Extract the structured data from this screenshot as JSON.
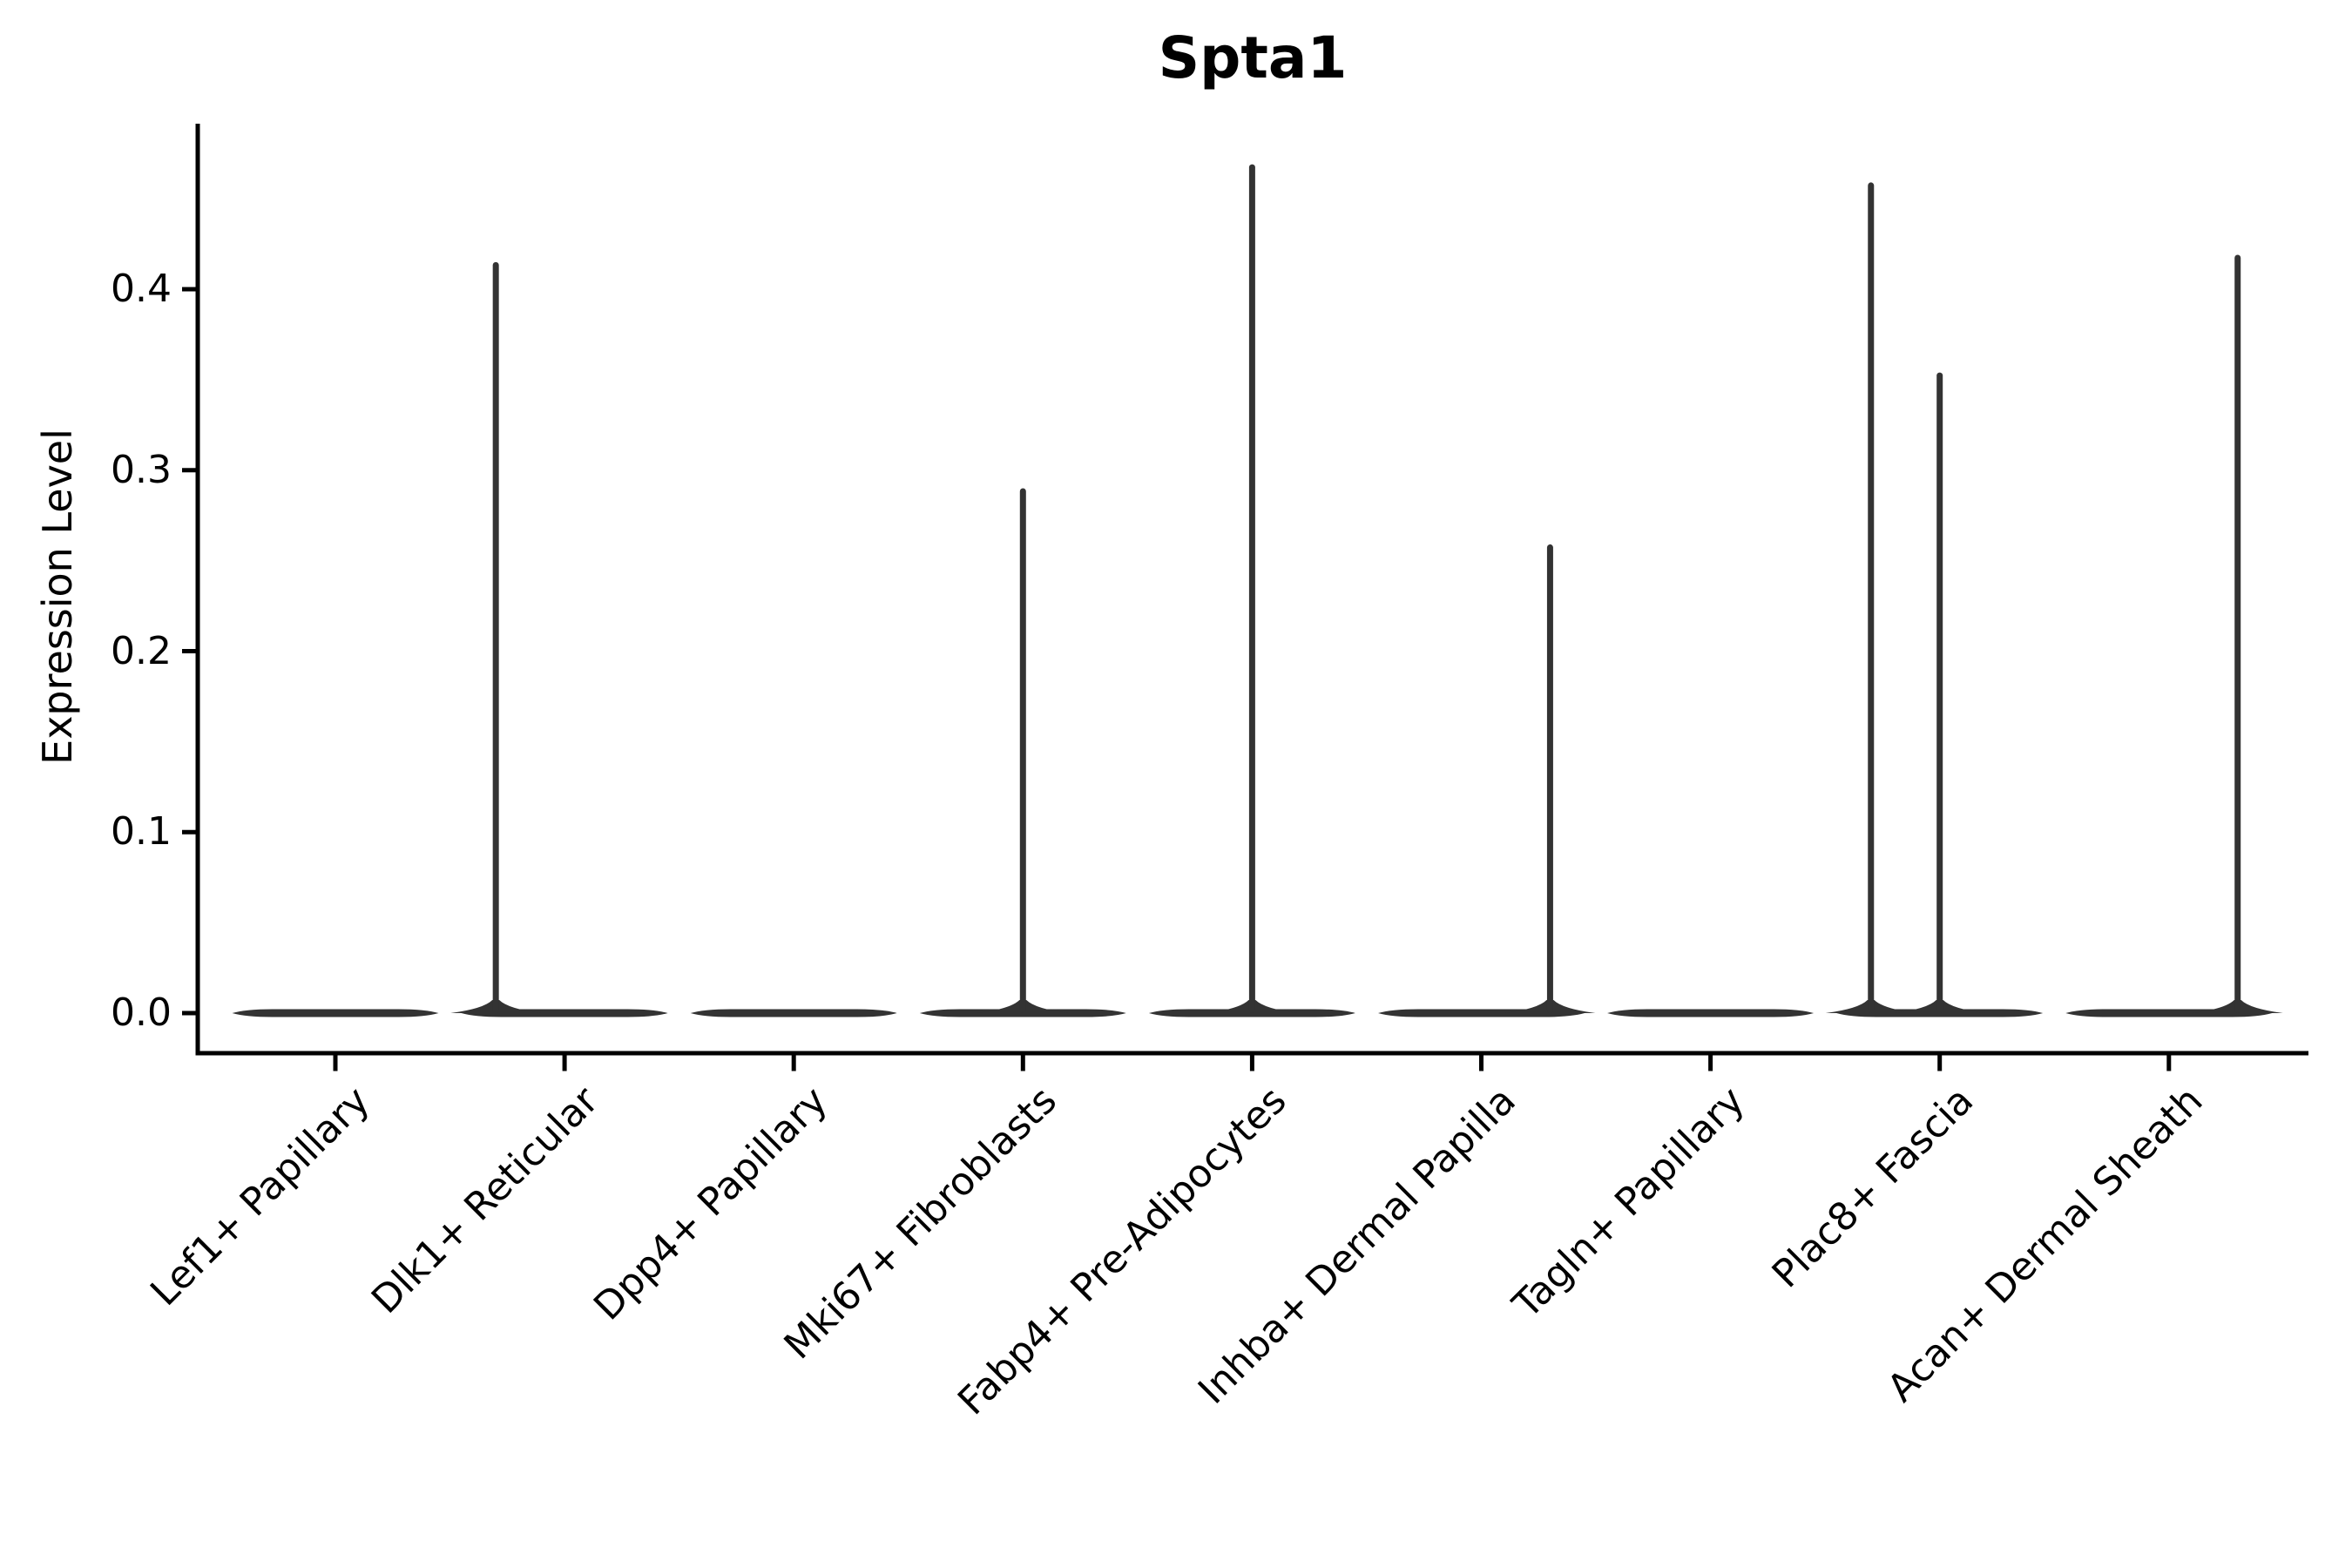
{
  "chart_data": {
    "type": "violin",
    "title": "Spta1",
    "ylabel": "Expression Level",
    "xlabel": "",
    "ylim": [
      0,
      0.49
    ],
    "grid": false,
    "legend": "none",
    "violin_color": "#333333",
    "axis_color": "#000000",
    "yticks": [
      {
        "label": "0.0",
        "value": 0.0
      },
      {
        "label": "0.1",
        "value": 0.1
      },
      {
        "label": "0.2",
        "value": 0.2
      },
      {
        "label": "0.3",
        "value": 0.3
      },
      {
        "label": "0.4",
        "value": 0.4
      }
    ],
    "categories": [
      "Lef1+ Papillary",
      "Dlk1+ Reticular",
      "Dpp4+ Papillary",
      "Mki67+ Fibroblasts",
      "Fabp4+ Pre-Adipocytes",
      "Inhba+ Dermal Papilla",
      "Tagln+ Papillary",
      "Plac8+ Fascia",
      "Acan+ Dermal Sheath"
    ],
    "series": [
      {
        "category": "Lef1+ Papillary",
        "bulk_at": 0.0,
        "spikes": []
      },
      {
        "category": "Dlk1+ Reticular",
        "bulk_at": 0.0,
        "spikes": [
          {
            "offset": -0.3,
            "value": 0.415
          }
        ]
      },
      {
        "category": "Dpp4+ Papillary",
        "bulk_at": 0.0,
        "spikes": []
      },
      {
        "category": "Mki67+ Fibroblasts",
        "bulk_at": 0.0,
        "spikes": [
          {
            "offset": 0.0,
            "value": 0.29
          }
        ]
      },
      {
        "category": "Fabp4+ Pre-Adipocytes",
        "bulk_at": 0.0,
        "spikes": [
          {
            "offset": 0.0,
            "value": 0.469
          }
        ]
      },
      {
        "category": "Inhba+ Dermal Papilla",
        "bulk_at": 0.0,
        "spikes": [
          {
            "offset": 0.3,
            "value": 0.259
          }
        ]
      },
      {
        "category": "Tagln+ Papillary",
        "bulk_at": 0.0,
        "spikes": []
      },
      {
        "category": "Plac8+ Fascia",
        "bulk_at": 0.0,
        "spikes": [
          {
            "offset": -0.3,
            "value": 0.459
          },
          {
            "offset": 0.0,
            "value": 0.354
          }
        ]
      },
      {
        "category": "Acan+ Dermal Sheath",
        "bulk_at": 0.0,
        "spikes": [
          {
            "offset": 0.3,
            "value": 0.419
          }
        ]
      }
    ]
  }
}
